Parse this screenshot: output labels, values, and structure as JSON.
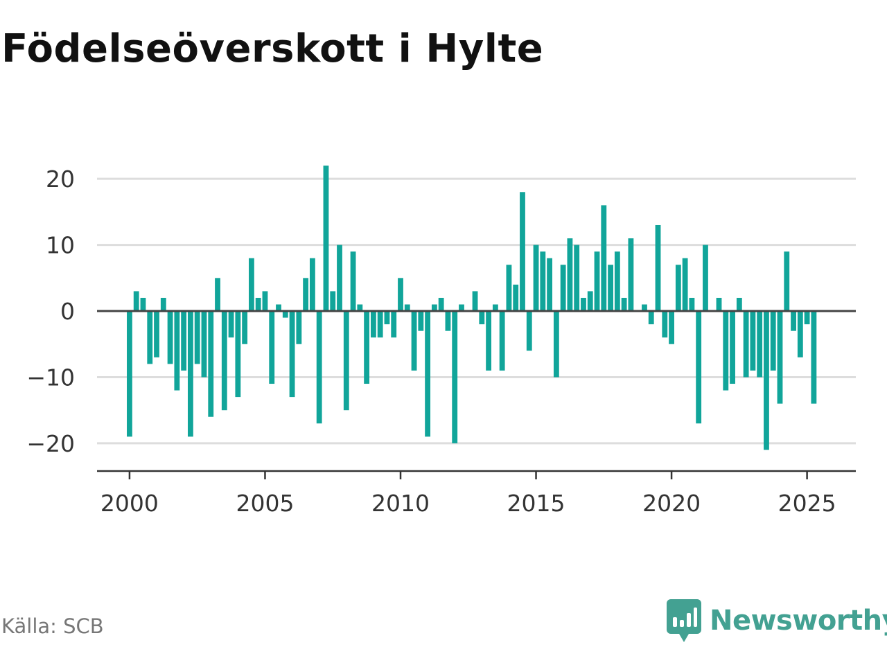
{
  "title": "Födelseöverskott i Hylte",
  "source": "Källa: SCB",
  "brand": {
    "name": "Newsworthy",
    "icon": "newsworthy-chart-icon",
    "color": "#43a192"
  },
  "colors": {
    "bar": "#11a59a",
    "grid": "#dddddd",
    "zero_line": "#444444",
    "axis": "#333333"
  },
  "chart_data": {
    "type": "bar",
    "title": "Födelseöverskott i Hylte",
    "xlabel": "",
    "ylabel": "",
    "x_ticks": [
      "2000",
      "2005",
      "2010",
      "2015",
      "2020",
      "2025"
    ],
    "y_ticks": [
      20,
      10,
      0,
      -10,
      -20
    ],
    "y_tick_labels": [
      "20",
      "10",
      "0",
      "−10",
      "−20"
    ],
    "ylim": [
      -24.2,
      24
    ],
    "xlim": [
      1998.8,
      2026.8
    ],
    "grid": true,
    "legend": "none",
    "bar_interval": "quarter",
    "series": [
      {
        "x": [
          2000.0,
          2000.25,
          2000.5,
          2000.75,
          2001.0,
          2001.25,
          2001.5,
          2001.75,
          2002.0,
          2002.25,
          2002.5,
          2002.75,
          2003.0,
          2003.25,
          2003.5,
          2003.75,
          2004.0,
          2004.25,
          2004.5,
          2004.75,
          2005.0,
          2005.25,
          2005.5,
          2005.75,
          2006.0,
          2006.25,
          2006.5,
          2006.75,
          2007.0,
          2007.25,
          2007.5,
          2007.75,
          2008.0,
          2008.25,
          2008.5,
          2008.75,
          2009.0,
          2009.25,
          2009.5,
          2009.75,
          2010.0,
          2010.25,
          2010.5,
          2010.75,
          2011.0,
          2011.25,
          2011.5,
          2011.75,
          2012.0,
          2012.25,
          2012.5,
          2012.75,
          2013.0,
          2013.25,
          2013.5,
          2013.75,
          2014.0,
          2014.25,
          2014.5,
          2014.75,
          2015.0,
          2015.25,
          2015.5,
          2015.75,
          2016.0,
          2016.25,
          2016.5,
          2016.75,
          2017.0,
          2017.25,
          2017.5,
          2017.75,
          2018.0,
          2018.25,
          2018.5,
          2018.75,
          2019.0,
          2019.25,
          2019.5,
          2019.75,
          2020.0,
          2020.25,
          2020.5,
          2020.75,
          2021.0,
          2021.25,
          2021.5,
          2021.75,
          2022.0,
          2022.25,
          2022.5,
          2022.75,
          2023.0,
          2023.25,
          2023.5,
          2023.75,
          2024.0,
          2024.25,
          2024.5,
          2024.75,
          2025.0,
          2025.25
        ],
        "values": [
          -19,
          3,
          2,
          -8,
          -7,
          2,
          -8,
          -12,
          -9,
          -19,
          -8,
          -10,
          -16,
          5,
          -15,
          -4,
          -13,
          -5,
          8,
          2,
          3,
          -11,
          1,
          -1,
          -13,
          -5,
          5,
          8,
          -17,
          22,
          3,
          10,
          -15,
          9,
          1,
          -11,
          -4,
          -4,
          -2,
          -4,
          5,
          1,
          -9,
          -3,
          -19,
          1,
          2,
          -3,
          -20,
          1,
          0,
          3,
          -2,
          -9,
          1,
          -9,
          7,
          4,
          18,
          -6,
          10,
          9,
          8,
          -10,
          7,
          11,
          10,
          2,
          3,
          9,
          16,
          7,
          9,
          2,
          11,
          0,
          1,
          -2,
          13,
          -4,
          -5,
          7,
          8,
          2,
          -17,
          10,
          0,
          2,
          -12,
          -11,
          2,
          -10,
          -9,
          -10,
          -21,
          -9,
          -14,
          9,
          -3,
          -7,
          -2,
          -14
        ]
      }
    ]
  }
}
